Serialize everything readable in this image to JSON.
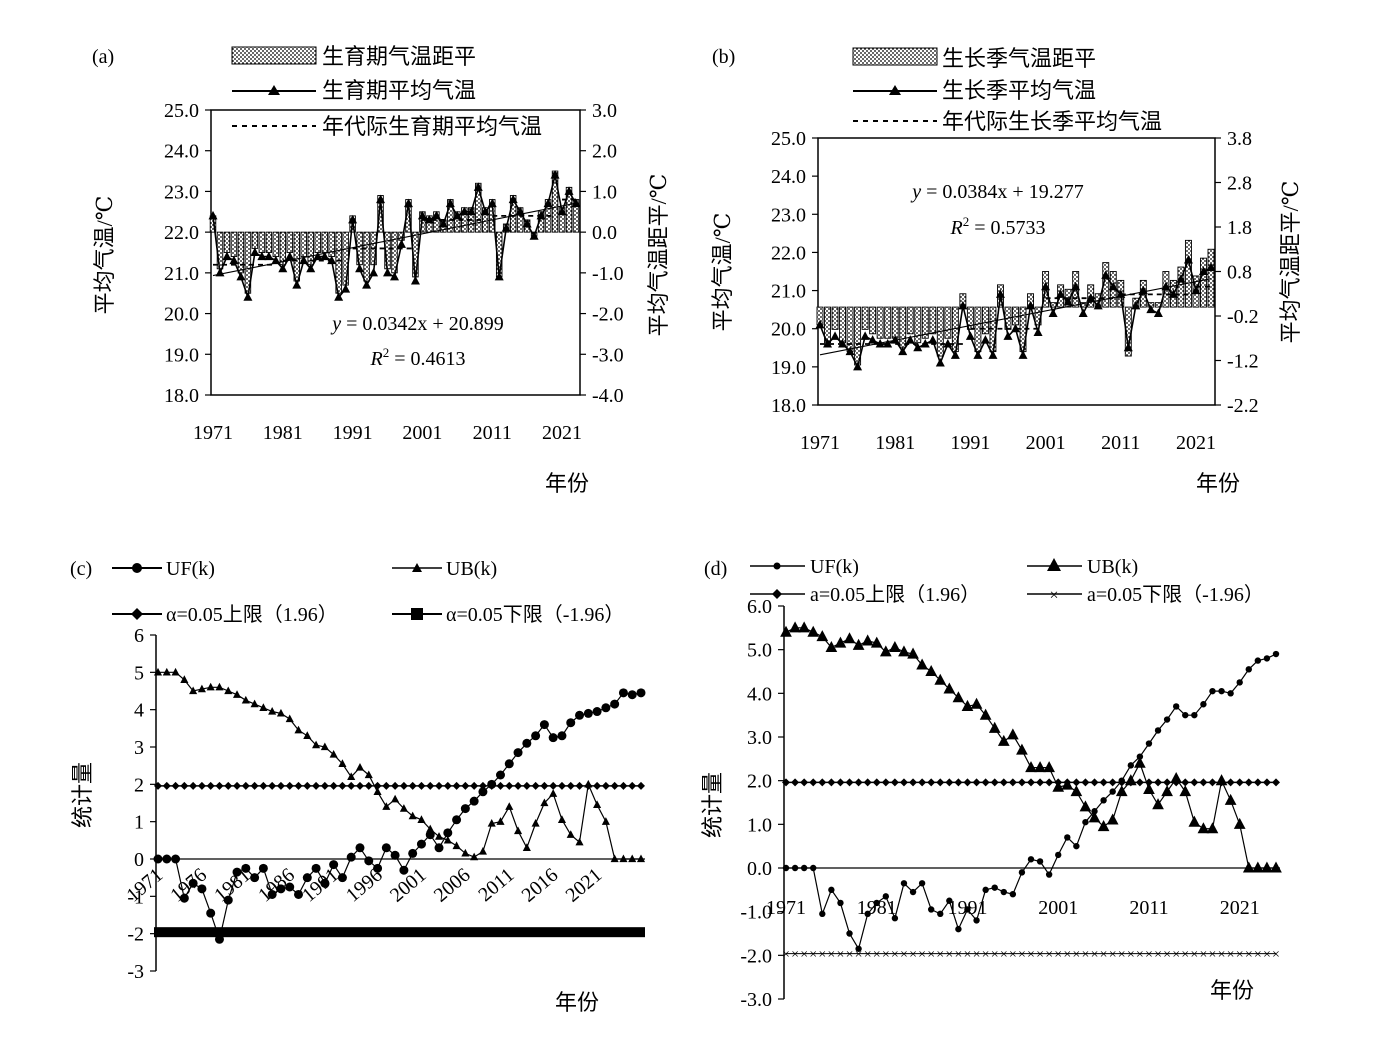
{
  "chart_data": [
    {
      "panel": "(a)",
      "type": "bar",
      "xlabel": "年份",
      "ylabel": "平均气温/℃",
      "y2label": "平均气温距平/℃",
      "ylim": [
        18.0,
        25.0
      ],
      "y2lim": [
        -4.0,
        3.0
      ],
      "yticks": [
        "18.0",
        "19.0",
        "20.0",
        "21.0",
        "22.0",
        "23.0",
        "24.0",
        "25.0"
      ],
      "y2ticks": [
        "-4.0",
        "-3.0",
        "-2.0",
        "-1.0",
        "0.0",
        "1.0",
        "2.0",
        "3.0"
      ],
      "xticks": [
        "1971",
        "1981",
        "1991",
        "2001",
        "2011",
        "2021"
      ],
      "xstart": 1971,
      "legend": [
        "生育期气温距平",
        "生育期平均气温",
        "年代际生育期平均气温"
      ],
      "equation": {
        "lhs": "y",
        "rhs": " = 0.0342x + 20.899",
        "r2": " = 0.4613"
      },
      "trend": {
        "slope": 0.0342,
        "intercept": 20.899
      },
      "decadal": [
        {
          "from": 1971,
          "to": 1980,
          "value": 21.2
        },
        {
          "from": 1981,
          "to": 1990,
          "value": 21.3
        },
        {
          "from": 1991,
          "to": 2000,
          "value": 21.6
        },
        {
          "from": 2001,
          "to": 2010,
          "value": 22.3
        },
        {
          "from": 2011,
          "to": 2020,
          "value": 22.4
        },
        {
          "from": 2021,
          "to": 2023,
          "value": 22.8
        }
      ],
      "anomaly": [
        0.4,
        -0.9,
        -0.5,
        -0.6,
        -1.0,
        -1.5,
        -0.4,
        -0.5,
        -0.5,
        -0.6,
        -0.8,
        -0.5,
        -1.2,
        -0.6,
        -0.8,
        -0.5,
        -0.5,
        -0.6,
        -1.5,
        -1.3,
        0.4,
        -0.8,
        -1.2,
        -0.8,
        0.9,
        -0.9,
        -1.0,
        -0.2,
        0.8,
        -1.1,
        0.5,
        0.4,
        0.5,
        0.3,
        0.8,
        0.5,
        0.6,
        0.6,
        1.2,
        0.6,
        0.8,
        -1.1,
        0.2,
        0.9,
        0.6,
        0.3,
        -0.1,
        0.5,
        0.8,
        1.5,
        0.6,
        1.1,
        0.8
      ],
      "mean": [
        22.4,
        21.0,
        21.4,
        21.3,
        20.9,
        20.4,
        21.5,
        21.4,
        21.4,
        21.3,
        21.1,
        21.4,
        20.7,
        21.3,
        21.1,
        21.4,
        21.4,
        21.3,
        20.4,
        20.6,
        22.3,
        21.1,
        20.7,
        21.0,
        22.8,
        21.0,
        20.9,
        21.7,
        22.7,
        20.8,
        22.4,
        22.3,
        22.4,
        22.2,
        22.7,
        22.4,
        22.5,
        22.5,
        23.1,
        22.5,
        22.7,
        20.9,
        22.1,
        22.8,
        22.5,
        22.2,
        21.9,
        22.4,
        22.7,
        23.4,
        22.5,
        23.0,
        22.7
      ]
    },
    {
      "panel": "(b)",
      "type": "bar",
      "xlabel": "年份",
      "ylabel": "平均气温/℃",
      "y2label": "平均气温距平/℃",
      "ylim": [
        18.0,
        25.0
      ],
      "y2lim": [
        -2.2,
        3.8
      ],
      "yticks": [
        "18.0",
        "19.0",
        "20.0",
        "21.0",
        "22.0",
        "23.0",
        "24.0",
        "25.0"
      ],
      "y2ticks": [
        "-2.2",
        "-1.2",
        "-0.2",
        "0.8",
        "1.8",
        "2.8",
        "3.8"
      ],
      "xticks": [
        "1971",
        "1981",
        "1991",
        "2001",
        "2011",
        "2021"
      ],
      "xstart": 1971,
      "legend": [
        "生长季气温距平",
        "生长季平均气温",
        "年代际生长季平均气温"
      ],
      "equation": {
        "lhs": "y",
        "rhs": " = 0.0384x + 19.277",
        "r2": " = 0.5733"
      },
      "trend": {
        "slope": 0.0384,
        "intercept": 19.277
      },
      "decadal": [
        {
          "from": 1971,
          "to": 1980,
          "value": 19.6
        },
        {
          "from": 1981,
          "to": 1990,
          "value": 19.6
        },
        {
          "from": 1991,
          "to": 2000,
          "value": 20.0
        },
        {
          "from": 2001,
          "to": 2010,
          "value": 20.8
        },
        {
          "from": 2011,
          "to": 2020,
          "value": 20.9
        },
        {
          "from": 2021,
          "to": 2023,
          "value": 21.1
        }
      ],
      "anomaly": [
        -0.4,
        -0.8,
        -0.5,
        -0.8,
        -1.0,
        -1.3,
        -0.5,
        -0.6,
        -0.7,
        -0.7,
        -0.7,
        -0.9,
        -0.6,
        -0.8,
        -0.7,
        -0.6,
        -1.1,
        -0.7,
        -1.0,
        0.3,
        -0.5,
        -1.0,
        -0.6,
        -1.0,
        0.5,
        -0.5,
        -0.4,
        -1.0,
        0.3,
        -0.4,
        0.8,
        0.1,
        0.5,
        0.4,
        0.8,
        0.1,
        0.5,
        0.3,
        1.0,
        0.8,
        0.6,
        -1.1,
        0.2,
        0.6,
        0.1,
        0.1,
        0.8,
        0.6,
        0.9,
        1.5,
        0.7,
        1.1,
        1.3
      ],
      "mean": [
        20.1,
        19.6,
        19.8,
        19.6,
        19.4,
        19.0,
        19.8,
        19.7,
        19.6,
        19.6,
        19.7,
        19.4,
        19.7,
        19.5,
        19.6,
        19.7,
        19.1,
        19.6,
        19.3,
        20.6,
        19.8,
        19.3,
        19.7,
        19.3,
        20.9,
        19.8,
        20.0,
        19.3,
        20.6,
        19.9,
        21.1,
        20.4,
        20.9,
        20.7,
        21.1,
        20.4,
        20.8,
        20.6,
        21.4,
        21.1,
        20.9,
        19.5,
        20.6,
        21.0,
        20.5,
        20.4,
        21.1,
        20.9,
        21.3,
        21.8,
        21.0,
        21.5,
        21.6
      ]
    },
    {
      "panel": "(c)",
      "type": "line",
      "xlabel": "年份",
      "ylabel": "统计量",
      "ylim": [
        -3,
        6
      ],
      "yticks": [
        "-3",
        "-2",
        "-1",
        "0",
        "1",
        "2",
        "3",
        "4",
        "5",
        "6"
      ],
      "xticks": [
        "1971",
        "1976",
        "1981",
        "1986",
        "1991",
        "1996",
        "2001",
        "2006",
        "2011",
        "2016",
        "2021"
      ],
      "xstart": 1971,
      "legend": [
        "UF(k)",
        "UB(k)",
        "α=0.05上限（1.96）",
        "α=0.05下限（-1.96）"
      ],
      "upper": 1.96,
      "lower": -1.96,
      "series": [
        {
          "name": "UF(k)",
          "values": [
            0,
            0,
            0,
            -1.05,
            -0.65,
            -0.8,
            -1.45,
            -2.15,
            -1.1,
            -0.35,
            -0.25,
            -0.5,
            -0.25,
            -0.95,
            -0.8,
            -0.75,
            -0.95,
            -0.5,
            -0.25,
            -0.65,
            -0.15,
            -0.5,
            0.05,
            0.3,
            -0.05,
            -0.25,
            0.3,
            0.1,
            -0.3,
            0.15,
            0.4,
            0.65,
            0.3,
            0.7,
            1.05,
            1.35,
            1.55,
            1.8,
            2.0,
            2.25,
            2.55,
            2.85,
            3.1,
            3.3,
            3.6,
            3.25,
            3.3,
            3.65,
            3.85,
            3.9,
            3.95,
            4.05,
            4.15,
            4.45,
            4.4,
            4.45
          ]
        },
        {
          "name": "UB(k)",
          "values": [
            5.0,
            5.0,
            5.0,
            4.8,
            4.5,
            4.55,
            4.6,
            4.6,
            4.5,
            4.4,
            4.25,
            4.15,
            4.05,
            3.95,
            3.9,
            3.75,
            3.45,
            3.3,
            3.05,
            3.0,
            2.8,
            2.55,
            2.2,
            2.45,
            2.25,
            1.8,
            1.4,
            1.6,
            1.35,
            1.15,
            1.05,
            0.8,
            0.6,
            0.5,
            0.35,
            0.15,
            0.05,
            0.2,
            0.95,
            1.0,
            1.4,
            0.75,
            0.3,
            0.95,
            1.5,
            1.75,
            1.05,
            0.65,
            0.45,
            2.0,
            1.45,
            1.0,
            0,
            0,
            0,
            0
          ]
        }
      ]
    },
    {
      "panel": "(d)",
      "type": "line",
      "xlabel": "年份",
      "ylabel": "统计量",
      "ylim": [
        -3.0,
        6.0
      ],
      "yticks": [
        "-3.0",
        "-2.0",
        "-1.0",
        "0.0",
        "1.0",
        "2.0",
        "3.0",
        "4.0",
        "5.0",
        "6.0"
      ],
      "xticks": [
        "1971",
        "1981",
        "1991",
        "2001",
        "2011",
        "2021"
      ],
      "xstart": 1971,
      "legend": [
        "UF(k)",
        "UB(k)",
        "a=0.05上限（1.96）",
        "a=0.05下限（-1.96）"
      ],
      "upper": 1.96,
      "lower": -1.96,
      "series": [
        {
          "name": "UF(k)",
          "values": [
            0,
            0,
            0,
            0,
            -1.05,
            -0.5,
            -0.8,
            -1.5,
            -1.85,
            -1.05,
            -0.8,
            -0.65,
            -1.15,
            -0.35,
            -0.55,
            -0.35,
            -0.95,
            -1.05,
            -0.75,
            -1.4,
            -0.95,
            -1.2,
            -0.5,
            -0.45,
            -0.55,
            -0.6,
            -0.1,
            0.2,
            0.15,
            -0.15,
            0.3,
            0.7,
            0.5,
            1.05,
            1.3,
            1.55,
            1.75,
            2.0,
            2.35,
            2.55,
            2.85,
            3.15,
            3.4,
            3.7,
            3.5,
            3.5,
            3.75,
            4.05,
            4.05,
            4.0,
            4.25,
            4.55,
            4.75,
            4.8,
            4.9
          ]
        },
        {
          "name": "UB(k)",
          "values": [
            5.4,
            5.5,
            5.5,
            5.4,
            5.3,
            5.05,
            5.15,
            5.25,
            5.1,
            5.2,
            5.15,
            4.95,
            5.05,
            4.95,
            4.9,
            4.65,
            4.5,
            4.3,
            4.1,
            3.9,
            3.7,
            3.75,
            3.5,
            3.2,
            2.9,
            3.05,
            2.7,
            2.3,
            2.3,
            2.3,
            1.85,
            1.9,
            1.75,
            1.4,
            1.15,
            0.95,
            1.1,
            1.75,
            2.0,
            2.4,
            1.8,
            1.45,
            1.75,
            2.05,
            1.75,
            1.05,
            0.9,
            0.9,
            2.0,
            1.55,
            1.0,
            0,
            0,
            0,
            0
          ]
        }
      ]
    }
  ]
}
